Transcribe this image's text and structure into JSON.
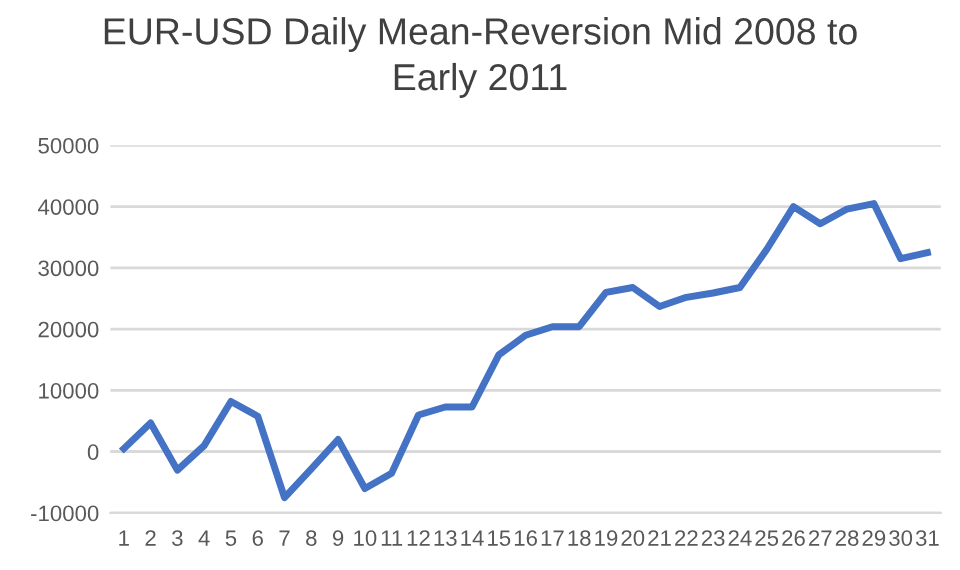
{
  "chart_data": {
    "type": "line",
    "title": "EUR-USD Daily Mean-Reversion Mid 2008 to\nEarly 2011",
    "categories": [
      "1",
      "2",
      "3",
      "4",
      "5",
      "6",
      "7",
      "8",
      "9",
      "10",
      "11",
      "12",
      "13",
      "14",
      "15",
      "16",
      "17",
      "18",
      "19",
      "20",
      "21",
      "22",
      "23",
      "24",
      "25",
      "26",
      "27",
      "28",
      "29",
      "30",
      "31"
    ],
    "series": [
      {
        "color": "#4472c4",
        "values": [
          500,
          4700,
          -3000,
          1000,
          8200,
          5800,
          -7500,
          -2800,
          2000,
          -6000,
          -3500,
          6000,
          7300,
          7300,
          15800,
          19000,
          20400,
          20400,
          26000,
          26800,
          23700,
          25200,
          25900,
          26800,
          33000,
          40000,
          37200,
          39600,
          40500,
          31500,
          32500
        ]
      }
    ],
    "ylim": [
      -10000,
      50000
    ],
    "yticks": [
      -10000,
      0,
      10000,
      20000,
      30000,
      40000,
      50000
    ],
    "grid": "y",
    "legend": false,
    "marker": "none",
    "line_style": "solid"
  }
}
